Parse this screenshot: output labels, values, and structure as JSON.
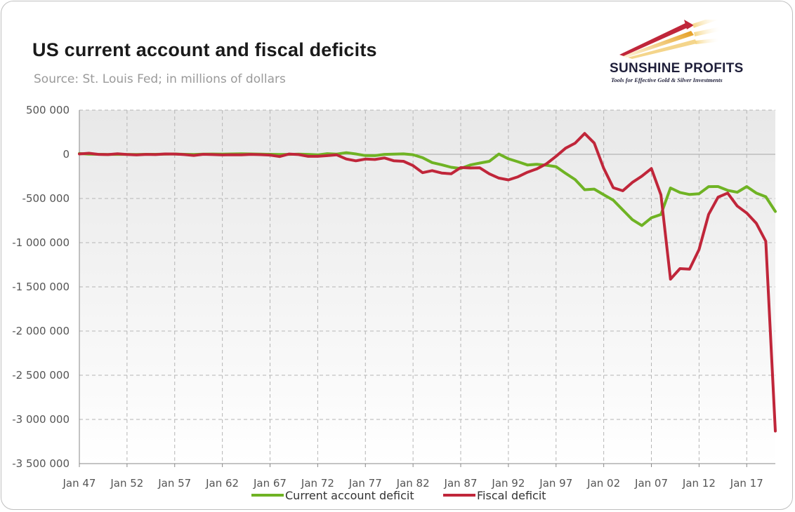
{
  "header": {
    "title": "US current account and fiscal deficits",
    "subtitle": "Source: St. Louis Fed; in millions of dollars"
  },
  "logo": {
    "name": "SUNSHINE PROFITS",
    "tagline": "Tools for Effective Gold & Silver Investments",
    "icon": "sun-ray-arrow-icon"
  },
  "colors": {
    "current_account": "#6fb324",
    "fiscal": "#c0263a",
    "plot_bg_top": "#e8e8e8",
    "plot_bg_bottom": "#ffffff"
  },
  "chart_data": {
    "type": "line",
    "title": "US current account and fiscal deficits",
    "subtitle": "Source: St. Louis Fed; in millions of dollars",
    "xlabel": "",
    "ylabel": "",
    "ylim": [
      -3500000,
      500000
    ],
    "yticks": [
      500000,
      0,
      -500000,
      -1000000,
      -1500000,
      -2000000,
      -2500000,
      -3000000,
      -3500000
    ],
    "ytick_labels": [
      "500 000",
      "0",
      "-500 000",
      "-1 000 000",
      "-1 500 000",
      "-2 000 000",
      "-2 500 000",
      "-3 000 000",
      "-3 500 000"
    ],
    "xlim": [
      1947,
      2020
    ],
    "xticks": [
      1947,
      1952,
      1957,
      1962,
      1967,
      1972,
      1977,
      1982,
      1987,
      1992,
      1997,
      2002,
      2007,
      2012,
      2017
    ],
    "xtick_labels": [
      "Jan 47",
      "Jan 52",
      "Jan 57",
      "Jan 62",
      "Jan 67",
      "Jan 72",
      "Jan 77",
      "Jan 82",
      "Jan 87",
      "Jan 92",
      "Jan 97",
      "Jan 02",
      "Jan 07",
      "Jan 12",
      "Jan 17"
    ],
    "grid": true,
    "legend": "bottom",
    "x": [
      1947,
      1948,
      1949,
      1950,
      1951,
      1952,
      1953,
      1954,
      1955,
      1956,
      1957,
      1958,
      1959,
      1960,
      1961,
      1962,
      1963,
      1964,
      1965,
      1966,
      1967,
      1968,
      1969,
      1970,
      1971,
      1972,
      1973,
      1974,
      1975,
      1976,
      1977,
      1978,
      1979,
      1980,
      1981,
      1982,
      1983,
      1984,
      1985,
      1986,
      1987,
      1988,
      1989,
      1990,
      1991,
      1992,
      1993,
      1994,
      1995,
      1996,
      1997,
      1998,
      1999,
      2000,
      2001,
      2002,
      2003,
      2004,
      2005,
      2006,
      2007,
      2008,
      2009,
      2010,
      2011,
      2012,
      2013,
      2014,
      2015,
      2016,
      2017,
      2018,
      2019,
      2020
    ],
    "series": [
      {
        "name": "Current account deficit",
        "color": "#6fb324",
        "values": [
          9000,
          2000,
          0,
          -2000,
          0,
          -1000,
          -2000,
          0,
          0,
          2000,
          4000,
          0,
          -2000,
          2000,
          3000,
          2000,
          4000,
          6000,
          4000,
          2000,
          0,
          -2000,
          -1000,
          2000,
          -1000,
          -6000,
          7000,
          2000,
          18000,
          4000,
          -14000,
          -15000,
          -1000,
          2000,
          5000,
          -5000,
          -38000,
          -94000,
          -118000,
          -147000,
          -160000,
          -121000,
          -99000,
          -79000,
          3000,
          -51000,
          -84000,
          -121000,
          -113000,
          -124000,
          -140000,
          -215000,
          -286000,
          -401000,
          -394000,
          -457000,
          -519000,
          -629000,
          -740000,
          -806000,
          -718000,
          -681000,
          -381000,
          -432000,
          -455000,
          -446000,
          -366000,
          -365000,
          -408000,
          -429000,
          -365000,
          -438000,
          -480000,
          -647000
        ]
      },
      {
        "name": "Fiscal deficit",
        "color": "#c0263a",
        "values": [
          4000,
          12000,
          -1000,
          -3000,
          6000,
          -2000,
          -7000,
          -1000,
          -3000,
          4000,
          3000,
          -3000,
          -13000,
          0,
          -3000,
          -7000,
          -5000,
          -6000,
          -1000,
          -4000,
          -9000,
          -25000,
          3000,
          -3000,
          -23000,
          -23000,
          -15000,
          -6000,
          -53000,
          -74000,
          -54000,
          -59000,
          -41000,
          -74000,
          -79000,
          -128000,
          -208000,
          -185000,
          -212000,
          -221000,
          -150000,
          -155000,
          -153000,
          -221000,
          -269000,
          -290000,
          -255000,
          -203000,
          -164000,
          -107000,
          -22000,
          69000,
          126000,
          236000,
          128000,
          -158000,
          -378000,
          -413000,
          -318000,
          -248000,
          -161000,
          -459000,
          -1413000,
          -1294000,
          -1300000,
          -1077000,
          -680000,
          -485000,
          -439000,
          -585000,
          -665000,
          -779000,
          -984000,
          -3132000
        ]
      }
    ]
  },
  "legend": {
    "items": [
      {
        "label": "Current account deficit"
      },
      {
        "label": "Fiscal deficit"
      }
    ]
  }
}
